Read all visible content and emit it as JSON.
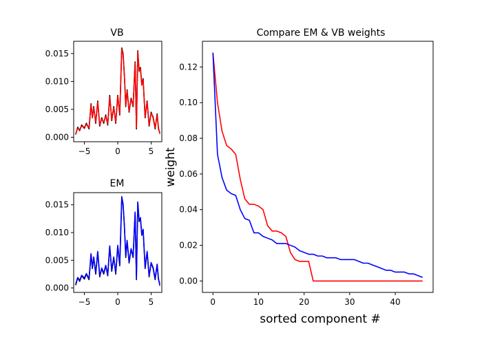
{
  "chart_data": [
    {
      "id": "vb",
      "type": "line",
      "title": "VB",
      "xlabel": "",
      "ylabel": "",
      "xlim": [
        -6.6,
        6.6
      ],
      "ylim": [
        -0.0008,
        0.0172
      ],
      "xticks": [
        -5,
        0,
        5
      ],
      "xtick_labels": [
        "−5",
        "0",
        "5"
      ],
      "yticks": [
        0,
        0.005,
        0.01,
        0.015
      ],
      "ytick_labels": [
        "0.000",
        "0.005",
        "0.010",
        "0.015"
      ],
      "grid": false,
      "series": [
        {
          "color": "#000000",
          "x": [
            -6.3,
            -6.0,
            -5.7,
            -5.4,
            -5.0,
            -4.7,
            -4.3,
            -4.0,
            -3.8,
            -3.6,
            -3.3,
            -3.0,
            -2.7,
            -2.4,
            -2.1,
            -1.8,
            -1.5,
            -1.2,
            -0.9,
            -0.6,
            -0.3,
            0.0,
            0.3,
            0.6,
            0.8,
            1.0,
            1.2,
            1.4,
            1.7,
            2.0,
            2.3,
            2.6,
            2.8,
            3.0,
            3.2,
            3.4,
            3.6,
            3.8,
            4.1,
            4.4,
            4.7,
            5.0,
            5.3,
            5.6,
            5.9,
            6.1,
            6.3
          ],
          "y": [
            0.0005,
            0.0018,
            0.0012,
            0.0022,
            0.0016,
            0.0025,
            0.0015,
            0.006,
            0.0035,
            0.0055,
            0.0025,
            0.0065,
            0.002,
            0.0035,
            0.0025,
            0.004,
            0.0022,
            0.0075,
            0.003,
            0.0055,
            0.0025,
            0.0075,
            0.004,
            0.016,
            0.015,
            0.011,
            0.0055,
            0.0085,
            0.0045,
            0.007,
            0.0055,
            0.0135,
            0.0015,
            0.0155,
            0.012,
            0.0125,
            0.0095,
            0.0105,
            0.0035,
            0.0065,
            0.002,
            0.0045,
            0.0035,
            0.0015,
            0.0042,
            0.0015,
            0.0008
          ]
        },
        {
          "color": "#ff0000",
          "x": [
            -6.3,
            -6.0,
            -5.7,
            -5.4,
            -5.0,
            -4.7,
            -4.3,
            -4.0,
            -3.8,
            -3.6,
            -3.3,
            -3.0,
            -2.7,
            -2.4,
            -2.1,
            -1.8,
            -1.5,
            -1.2,
            -0.9,
            -0.6,
            -0.3,
            0.0,
            0.3,
            0.6,
            0.8,
            1.0,
            1.2,
            1.4,
            1.7,
            2.0,
            2.3,
            2.6,
            2.8,
            3.0,
            3.2,
            3.4,
            3.6,
            3.8,
            4.1,
            4.4,
            4.7,
            5.0,
            5.3,
            5.6,
            5.9,
            6.1,
            6.3
          ],
          "y": [
            0.0006,
            0.0016,
            0.0014,
            0.002,
            0.0018,
            0.0023,
            0.0017,
            0.0058,
            0.0036,
            0.0053,
            0.0027,
            0.0063,
            0.0022,
            0.0033,
            0.0027,
            0.0038,
            0.0024,
            0.0072,
            0.0032,
            0.0053,
            0.0027,
            0.0073,
            0.0042,
            0.0158,
            0.0148,
            0.0108,
            0.0057,
            0.0083,
            0.0047,
            0.0068,
            0.0057,
            0.0133,
            0.0017,
            0.0153,
            0.0118,
            0.0123,
            0.0093,
            0.0103,
            0.0037,
            0.0063,
            0.0022,
            0.0043,
            0.0037,
            0.0017,
            0.004,
            0.0017,
            0.0006
          ]
        }
      ]
    },
    {
      "id": "em",
      "type": "line",
      "title": "EM",
      "xlabel": "",
      "ylabel": "",
      "xlim": [
        -6.6,
        6.6
      ],
      "ylim": [
        -0.0008,
        0.0172
      ],
      "xticks": [
        -5,
        0,
        5
      ],
      "xtick_labels": [
        "−5",
        "0",
        "5"
      ],
      "yticks": [
        0,
        0.005,
        0.01,
        0.015
      ],
      "ytick_labels": [
        "0.000",
        "0.005",
        "0.010",
        "0.015"
      ],
      "grid": false,
      "series": [
        {
          "color": "#000000",
          "x": [
            -6.3,
            -6.0,
            -5.7,
            -5.4,
            -5.0,
            -4.7,
            -4.3,
            -4.0,
            -3.8,
            -3.6,
            -3.3,
            -3.0,
            -2.7,
            -2.4,
            -2.1,
            -1.8,
            -1.5,
            -1.2,
            -0.9,
            -0.6,
            -0.3,
            0.0,
            0.3,
            0.6,
            0.8,
            1.0,
            1.2,
            1.4,
            1.7,
            2.0,
            2.3,
            2.6,
            2.8,
            3.0,
            3.2,
            3.4,
            3.6,
            3.8,
            4.1,
            4.4,
            4.7,
            5.0,
            5.3,
            5.6,
            5.9,
            6.1,
            6.3
          ],
          "y": [
            0.0005,
            0.0018,
            0.0012,
            0.0022,
            0.0016,
            0.0025,
            0.0015,
            0.006,
            0.0035,
            0.0055,
            0.0025,
            0.0065,
            0.002,
            0.0035,
            0.0025,
            0.004,
            0.0022,
            0.0075,
            0.003,
            0.0055,
            0.0025,
            0.0075,
            0.004,
            0.016,
            0.015,
            0.011,
            0.0055,
            0.0085,
            0.0045,
            0.007,
            0.0055,
            0.0135,
            0.0015,
            0.0155,
            0.012,
            0.0125,
            0.0095,
            0.0105,
            0.0035,
            0.0065,
            0.002,
            0.0045,
            0.0035,
            0.0015,
            0.0042,
            0.0015,
            0.0008
          ]
        },
        {
          "color": "#0000ff",
          "x": [
            -6.3,
            -6.0,
            -5.7,
            -5.4,
            -5.0,
            -4.7,
            -4.3,
            -4.0,
            -3.8,
            -3.6,
            -3.3,
            -3.0,
            -2.7,
            -2.4,
            -2.1,
            -1.8,
            -1.5,
            -1.2,
            -0.9,
            -0.6,
            -0.3,
            0.0,
            0.3,
            0.6,
            0.8,
            1.0,
            1.2,
            1.4,
            1.7,
            2.0,
            2.3,
            2.6,
            2.8,
            3.0,
            3.2,
            3.4,
            3.6,
            3.8,
            4.1,
            4.4,
            4.7,
            5.0,
            5.3,
            5.6,
            5.9,
            6.1,
            6.3
          ],
          "y": [
            0.0007,
            0.0019,
            0.0014,
            0.0023,
            0.0018,
            0.0026,
            0.0017,
            0.0062,
            0.0037,
            0.0056,
            0.0027,
            0.0066,
            0.0022,
            0.0036,
            0.0027,
            0.0041,
            0.0024,
            0.0076,
            0.0032,
            0.0056,
            0.0027,
            0.0077,
            0.0042,
            0.0165,
            0.0152,
            0.0112,
            0.0057,
            0.0086,
            0.0047,
            0.0071,
            0.0057,
            0.0137,
            0.0017,
            0.0155,
            0.0122,
            0.0127,
            0.0097,
            0.0106,
            0.0037,
            0.0066,
            0.0022,
            0.0046,
            0.0037,
            0.0017,
            0.0043,
            0.0017,
            0.0004
          ]
        }
      ]
    },
    {
      "id": "compare",
      "type": "line",
      "title": "Compare EM & VB weights",
      "xlabel": "sorted component #",
      "ylabel": "weight",
      "xlim": [
        -2.3,
        48.3
      ],
      "ylim": [
        -0.0064,
        0.1344
      ],
      "xticks": [
        0,
        10,
        20,
        30,
        40
      ],
      "xtick_labels": [
        "0",
        "10",
        "20",
        "30",
        "40"
      ],
      "yticks": [
        0,
        0.02,
        0.04,
        0.06,
        0.08,
        0.1,
        0.12
      ],
      "ytick_labels": [
        "0.00",
        "0.02",
        "0.04",
        "0.06",
        "0.08",
        "0.10",
        "0.12"
      ],
      "grid": false,
      "series": [
        {
          "color": "#ff0000",
          "x": [
            0,
            1,
            2,
            3,
            4,
            5,
            6,
            7,
            8,
            9,
            10,
            11,
            12,
            13,
            14,
            15,
            16,
            17,
            18,
            19,
            20,
            21,
            22,
            23,
            24,
            25,
            26,
            27,
            28,
            29,
            30,
            31,
            32,
            33,
            34,
            35,
            36,
            37,
            38,
            39,
            40,
            41,
            42,
            43,
            44,
            45,
            46
          ],
          "y": [
            0.128,
            0.1,
            0.084,
            0.076,
            0.074,
            0.071,
            0.057,
            0.046,
            0.043,
            0.043,
            0.042,
            0.04,
            0.031,
            0.028,
            0.028,
            0.027,
            0.025,
            0.016,
            0.012,
            0.011,
            0.011,
            0.011,
            0,
            0,
            0,
            0,
            0,
            0,
            0,
            0,
            0,
            0,
            0,
            0,
            0,
            0,
            0,
            0,
            0,
            0,
            0,
            0,
            0,
            0,
            0,
            0,
            0
          ]
        },
        {
          "color": "#0000ff",
          "x": [
            0,
            1,
            2,
            3,
            4,
            5,
            6,
            7,
            8,
            9,
            10,
            11,
            12,
            13,
            14,
            15,
            16,
            17,
            18,
            19,
            20,
            21,
            22,
            23,
            24,
            25,
            26,
            27,
            28,
            29,
            30,
            31,
            32,
            33,
            34,
            35,
            36,
            37,
            38,
            39,
            40,
            41,
            42,
            43,
            44,
            45,
            46
          ],
          "y": [
            0.128,
            0.071,
            0.058,
            0.051,
            0.049,
            0.048,
            0.04,
            0.035,
            0.034,
            0.027,
            0.027,
            0.025,
            0.024,
            0.023,
            0.021,
            0.021,
            0.021,
            0.02,
            0.019,
            0.017,
            0.016,
            0.015,
            0.015,
            0.014,
            0.014,
            0.013,
            0.013,
            0.013,
            0.012,
            0.012,
            0.012,
            0.012,
            0.011,
            0.01,
            0.01,
            0.009,
            0.008,
            0.007,
            0.006,
            0.006,
            0.005,
            0.005,
            0.005,
            0.004,
            0.004,
            0.003,
            0.002
          ]
        }
      ]
    }
  ]
}
